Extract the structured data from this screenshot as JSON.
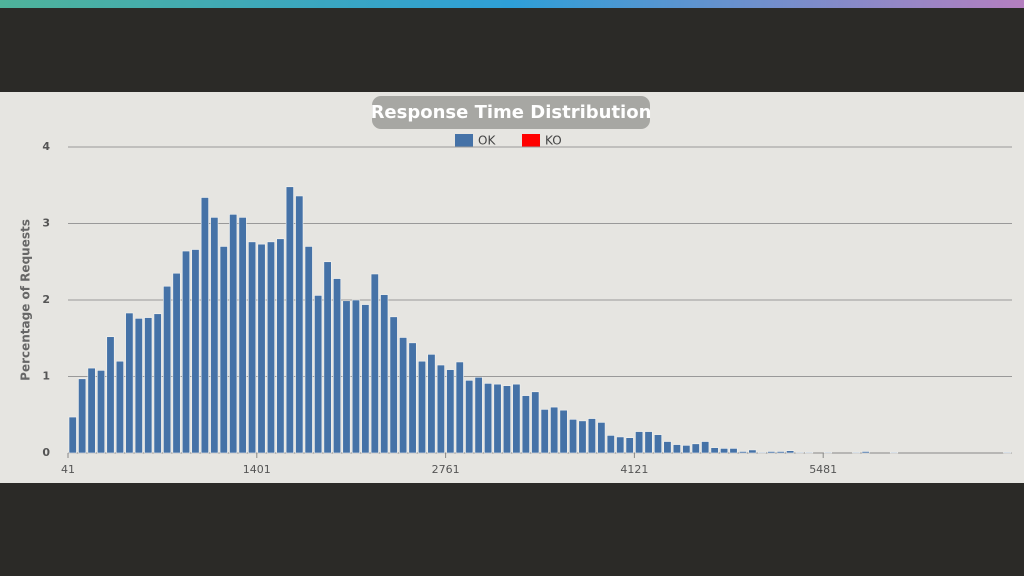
{
  "chart_data": {
    "type": "histogram",
    "title": "Response Time Distribution",
    "ylabel": "Percentage of Requests",
    "bins": [
      41,
      109,
      177,
      245,
      313,
      381,
      449,
      517,
      585,
      653,
      721,
      789,
      857,
      925,
      993,
      1061,
      1129,
      1197,
      1265,
      1333,
      1401,
      1469,
      1537,
      1605,
      1673,
      1741,
      1809,
      1877,
      1945,
      2013,
      2081,
      2149,
      2217,
      2285,
      2353,
      2421,
      2489,
      2557,
      2625,
      2693,
      2761,
      2829,
      2897,
      2965,
      3033,
      3101,
      3169,
      3237,
      3305,
      3373,
      3441,
      3509,
      3577,
      3645,
      3713,
      3781,
      3849,
      3917,
      3985,
      4053,
      4121,
      4189,
      4257,
      4325,
      4393,
      4461,
      4529,
      4597,
      4665,
      4733,
      4801,
      4869,
      4937,
      5005,
      5073,
      5141,
      5209,
      5277,
      5345,
      5413,
      5481,
      5549,
      5617,
      5685,
      5753,
      5821,
      5889,
      5957,
      6025,
      6093,
      6161,
      6229,
      6297,
      6365,
      6433,
      6501,
      6569,
      6637,
      6705,
      6773,
      6841
    ],
    "series": [
      {
        "name": "OK",
        "color": "#4572a7",
        "values": [
          0.47,
          0.97,
          1.11,
          1.08,
          1.52,
          1.2,
          1.83,
          1.76,
          1.77,
          1.82,
          2.18,
          2.35,
          2.64,
          2.66,
          3.34,
          3.08,
          2.7,
          3.12,
          3.08,
          2.76,
          2.73,
          2.76,
          2.8,
          3.48,
          3.36,
          2.7,
          2.06,
          2.5,
          2.28,
          1.99,
          2.0,
          1.94,
          2.34,
          2.07,
          1.78,
          1.51,
          1.44,
          1.2,
          1.29,
          1.15,
          1.09,
          1.19,
          0.95,
          0.99,
          0.91,
          0.9,
          0.88,
          0.9,
          0.75,
          0.8,
          0.57,
          0.6,
          0.56,
          0.44,
          0.42,
          0.45,
          0.4,
          0.23,
          0.21,
          0.2,
          0.28,
          0.28,
          0.24,
          0.15,
          0.11,
          0.1,
          0.12,
          0.15,
          0.07,
          0.06,
          0.06,
          0.02,
          0.04,
          0.01,
          0.02,
          0.02,
          0.03,
          0.01,
          0.01,
          0,
          0.01,
          0,
          0,
          0.01,
          0.02,
          0,
          0,
          0.01,
          0,
          0,
          0,
          0,
          0,
          0,
          0,
          0,
          0,
          0,
          0,
          0.01
        ]
      },
      {
        "name": "KO",
        "color": "#ff0000",
        "values": [
          0,
          0,
          0,
          0,
          0,
          0,
          0,
          0,
          0,
          0,
          0,
          0,
          0,
          0,
          0,
          0,
          0,
          0,
          0,
          0,
          0,
          0,
          0,
          0,
          0,
          0,
          0,
          0,
          0,
          0,
          0,
          0,
          0,
          0,
          0,
          0,
          0,
          0,
          0,
          0,
          0,
          0,
          0,
          0,
          0,
          0,
          0,
          0,
          0,
          0,
          0,
          0,
          0,
          0,
          0,
          0,
          0,
          0,
          0,
          0,
          0,
          0,
          0,
          0,
          0,
          0,
          0,
          0,
          0,
          0,
          0,
          0,
          0,
          0,
          0,
          0,
          0,
          0,
          0,
          0,
          0,
          0,
          0,
          0,
          0,
          0,
          0,
          0,
          0,
          0,
          0,
          0,
          0,
          0,
          0,
          0,
          0,
          0,
          0,
          0
        ]
      }
    ],
    "xlim": [
      41,
      6841
    ],
    "xticks": [
      41,
      1401,
      2761,
      4121,
      5481
    ],
    "ylim": [
      0,
      4
    ],
    "yticks": [
      0,
      1,
      2,
      3,
      4
    ],
    "grid": true
  }
}
